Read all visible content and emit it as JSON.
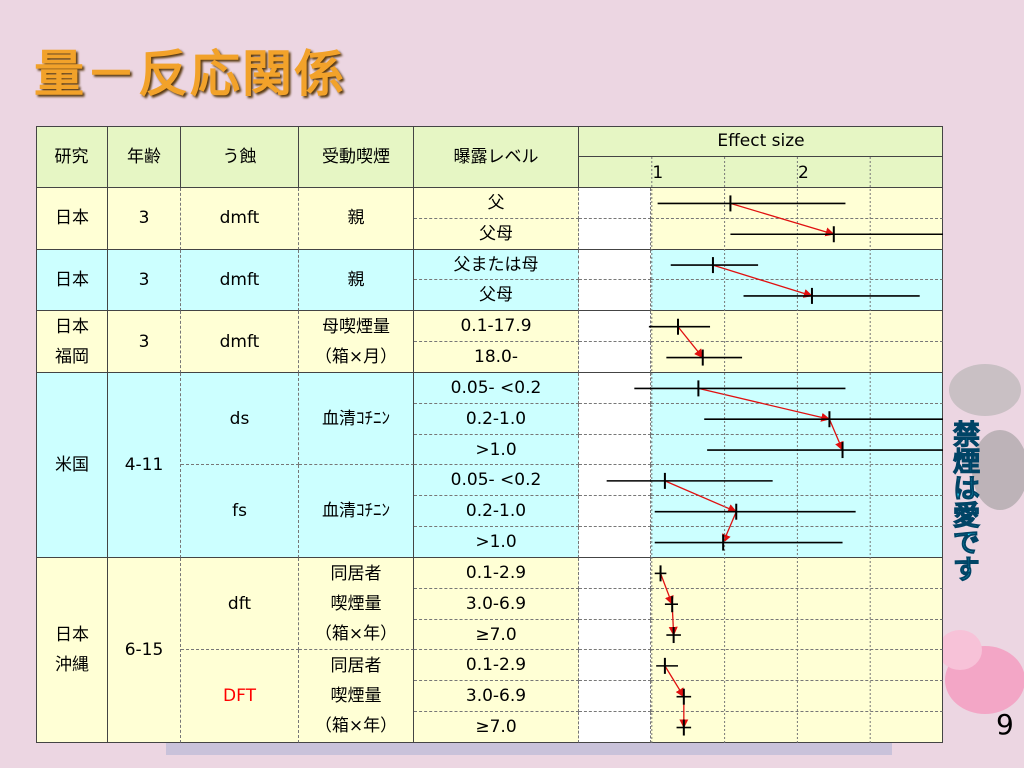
{
  "title": "量－反応関係",
  "table": {
    "headers": [
      "研究",
      "年齢",
      "う蝕",
      "受動喫煙",
      "曝露レベル"
    ],
    "effect_header": "Effect size",
    "xlim": [
      0.5,
      3.0
    ],
    "xticks": [
      1,
      2
    ],
    "grid": [
      1,
      1.5,
      2,
      2.5
    ],
    "groups": [
      {
        "study": "日本",
        "age": "3",
        "color": "#ffffd5",
        "subgroups": [
          {
            "caries": "dmft",
            "exposure": "親",
            "rows": [
              {
                "level": "父",
                "estimate": 1.54,
                "ci": [
                  1.04,
                  2.33
                ]
              },
              {
                "level": "父母",
                "estimate": 2.25,
                "ci": [
                  1.54,
                  3.0
                ]
              }
            ]
          }
        ]
      },
      {
        "study": "日本",
        "age": "3",
        "color": "#ccffff",
        "subgroups": [
          {
            "caries": "dmft",
            "exposure": "親",
            "rows": [
              {
                "level": "父または母",
                "estimate": 1.42,
                "ci": [
                  1.13,
                  1.73
                ]
              },
              {
                "level": "父母",
                "estimate": 2.1,
                "ci": [
                  1.63,
                  2.84
                ]
              }
            ]
          }
        ]
      },
      {
        "study": "日本\n福岡",
        "age": "3",
        "color": "#ffffd5",
        "subgroups": [
          {
            "caries": "dmft",
            "exposure": "母喫煙量\n（箱×月）",
            "rows": [
              {
                "level": "0.1-17.9",
                "estimate": 1.18,
                "ci": [
                  0.98,
                  1.4
                ]
              },
              {
                "level": "18.0-",
                "estimate": 1.35,
                "ci": [
                  1.1,
                  1.62
                ]
              }
            ]
          }
        ]
      },
      {
        "study": "米国",
        "age": "4-11",
        "color": "#ccffff",
        "subgroups": [
          {
            "caries": "ds",
            "exposure": "血清ｺﾁﾆﾝ",
            "rows": [
              {
                "level": "0.05- <0.2",
                "estimate": 1.32,
                "ci": [
                  0.88,
                  2.33
                ]
              },
              {
                "level": "0.2-1.0",
                "estimate": 2.22,
                "ci": [
                  1.36,
                  3.0
                ]
              },
              {
                "level": ">1.0",
                "estimate": 2.31,
                "ci": [
                  1.38,
                  3.0
                ]
              }
            ]
          },
          {
            "caries": "fs",
            "exposure": "血清ｺﾁﾆﾝ",
            "rows": [
              {
                "level": "0.05- <0.2",
                "estimate": 1.09,
                "ci": [
                  0.69,
                  1.83
                ]
              },
              {
                "level": "0.2-1.0",
                "estimate": 1.58,
                "ci": [
                  1.02,
                  2.4
                ]
              },
              {
                "level": ">1.0",
                "estimate": 1.49,
                "ci": [
                  1.02,
                  2.31
                ]
              }
            ]
          }
        ]
      },
      {
        "study": "日本\n沖縄",
        "age": "6-15",
        "color": "#ffffd5",
        "subgroups": [
          {
            "caries": "dft",
            "exposure": "同居者\n喫煙量\n（箱×年）",
            "rows": [
              {
                "level": "0.1-2.9",
                "estimate": 1.06,
                "ci": [
                  1.02,
                  1.1
                ]
              },
              {
                "level": "3.0-6.9",
                "estimate": 1.14,
                "ci": [
                  1.09,
                  1.18
                ]
              },
              {
                "level": "≥7.0",
                "estimate": 1.15,
                "ci": [
                  1.1,
                  1.2
                ]
              }
            ]
          },
          {
            "caries": "DFT",
            "caries_color": "#ff0000",
            "exposure": "同居者\n喫煙量\n（箱×年）",
            "rows": [
              {
                "level": "0.1-2.9",
                "estimate": 1.09,
                "ci": [
                  1.03,
                  1.18
                ]
              },
              {
                "level": "3.0-6.9",
                "estimate": 1.22,
                "ci": [
                  1.17,
                  1.27
                ]
              },
              {
                "level": "≥7.0",
                "estimate": 1.22,
                "ci": [
                  1.17,
                  1.27
                ]
              }
            ]
          }
        ]
      }
    ]
  },
  "side_text": "禁煙は愛です",
  "page_number": "9"
}
